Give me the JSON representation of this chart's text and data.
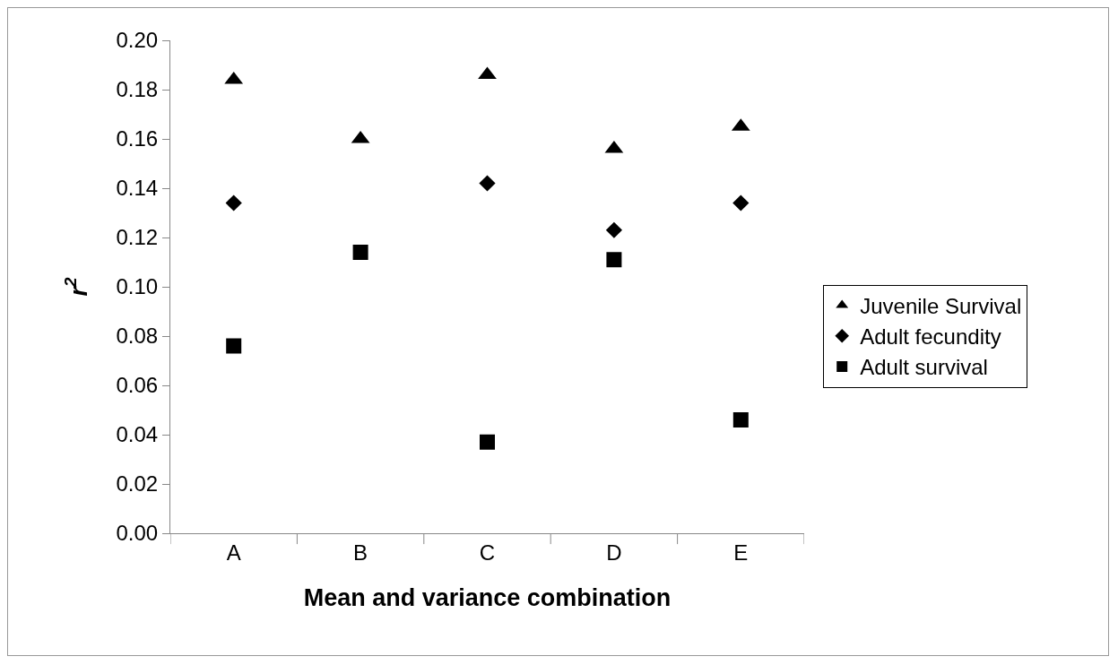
{
  "chart_data": {
    "type": "scatter",
    "xlabel": "Mean and variance combination",
    "ylabel": "r$^{2}$",
    "categories": [
      "A",
      "B",
      "C",
      "D",
      "E"
    ],
    "series": [
      {
        "name": "Juvenile Survival",
        "color": "#000000",
        "marker": "triangle",
        "values": [
          0.184,
          0.16,
          0.186,
          0.156,
          0.165
        ]
      },
      {
        "name": "Adult fecundity",
        "color": "#000000",
        "marker": "diamond",
        "values": [
          0.134,
          null,
          0.142,
          0.123,
          0.134
        ]
      },
      {
        "name": "Adult survival",
        "color": "#000000",
        "marker": "square",
        "values": [
          0.076,
          0.114,
          0.037,
          0.111,
          0.046
        ]
      }
    ],
    "ylim": [
      0,
      0.2
    ],
    "yticks": [
      {
        "value": 0,
        "label": "0.00"
      },
      {
        "value": 0.02,
        "label": "0.02"
      },
      {
        "value": 0.04,
        "label": "0.04"
      },
      {
        "value": 0.06,
        "label": "0.06"
      },
      {
        "value": 0.08,
        "label": "0.08"
      },
      {
        "value": 0.1,
        "label": "0.10"
      },
      {
        "value": 0.12,
        "label": "0.12"
      },
      {
        "value": 0.14,
        "label": "0.14"
      },
      {
        "value": 0.16,
        "label": "0.16"
      },
      {
        "value": 0.18,
        "label": "0.18"
      },
      {
        "value": 0.2,
        "label": "0.20"
      }
    ],
    "grid": false,
    "legend": "right"
  }
}
